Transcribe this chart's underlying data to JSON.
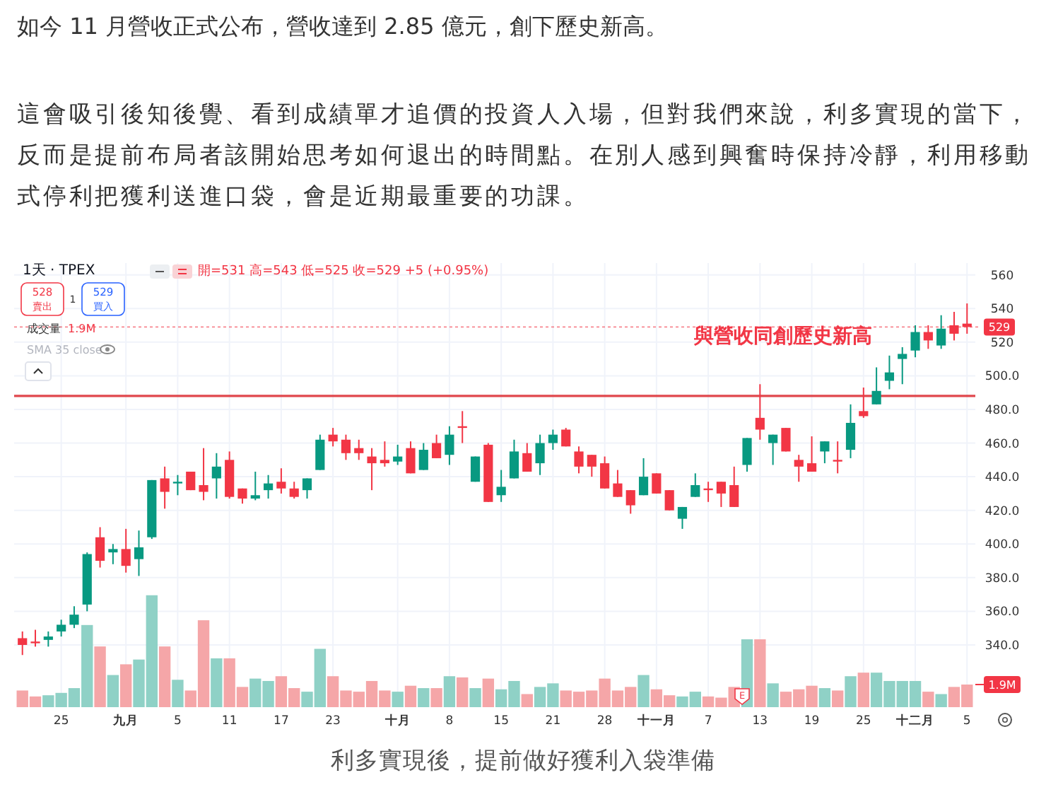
{
  "chart_data": {
    "type": "candlestick",
    "title": "如今 11 月營收正式公布，營收達到 2.85 億元，創下歷史新高。",
    "subtitle": "這會吸引後知後覺、看到成績單才追價的投資人入場，但對我們來說，利多實現的當下，反而是提前布局者該開始思考如何退出的時間點。在別人感到興奮時保持冷靜，利用移動式停利把獲利送進口袋，會是近期最重要的功課。",
    "categories": [
      null,
      null,
      null,
      "25",
      null,
      null,
      null,
      null,
      "九月",
      null,
      null,
      null,
      "5",
      null,
      null,
      null,
      "11",
      null,
      null,
      null,
      "17",
      null,
      null,
      null,
      "23",
      null,
      null,
      null,
      null,
      "十月",
      null,
      null,
      null,
      "8",
      null,
      null,
      null,
      "15",
      null,
      null,
      null,
      "21",
      null,
      null,
      null,
      "28",
      null,
      null,
      null,
      "十一月",
      null,
      null,
      null,
      "7",
      null,
      null,
      null,
      "13",
      null,
      null,
      null,
      "19",
      null,
      null,
      null,
      "25",
      null,
      null,
      null,
      "十二月",
      null,
      null,
      null,
      "5"
    ],
    "ohlc": [
      [
        344,
        348,
        334,
        340
      ],
      [
        342,
        349,
        339,
        341
      ],
      [
        343,
        348,
        339,
        345
      ],
      [
        348,
        355,
        345,
        352
      ],
      [
        352,
        363,
        350,
        358
      ],
      [
        364,
        395,
        360,
        394
      ],
      [
        404,
        410,
        386,
        390
      ],
      [
        395,
        400,
        388,
        397
      ],
      [
        397,
        409,
        383,
        387
      ],
      [
        391,
        408,
        381,
        398
      ],
      [
        404,
        438,
        403,
        438
      ],
      [
        439,
        446,
        421,
        431
      ],
      [
        436,
        441,
        429,
        437
      ],
      [
        443,
        443,
        432,
        432
      ],
      [
        435,
        457,
        426,
        431
      ],
      [
        439,
        454,
        427,
        446
      ],
      [
        450,
        455,
        427,
        428
      ],
      [
        433,
        433,
        424,
        427
      ],
      [
        427,
        443,
        426,
        429
      ],
      [
        432,
        441,
        427,
        436
      ],
      [
        437,
        445,
        430,
        433
      ],
      [
        433,
        437,
        427,
        428
      ],
      [
        432,
        439,
        427,
        439
      ],
      [
        444,
        465,
        444,
        462
      ],
      [
        465,
        469,
        458,
        461
      ],
      [
        462,
        465,
        450,
        454
      ],
      [
        457,
        462,
        450,
        454
      ],
      [
        452,
        457,
        432,
        448
      ],
      [
        450,
        461,
        446,
        448
      ],
      [
        449,
        459,
        447,
        452
      ],
      [
        457,
        461,
        442,
        442
      ],
      [
        444,
        460,
        444,
        456
      ],
      [
        460,
        465,
        451,
        451
      ],
      [
        453,
        470,
        447,
        465
      ],
      [
        470,
        479,
        460,
        469
      ],
      [
        437,
        452,
        437,
        452
      ],
      [
        459,
        460,
        425,
        425
      ],
      [
        429,
        444,
        425,
        434
      ],
      [
        439,
        462,
        439,
        455
      ],
      [
        454,
        460,
        443,
        443
      ],
      [
        448,
        465,
        441,
        460
      ],
      [
        460,
        468,
        456,
        465
      ],
      [
        468,
        469,
        458,
        458
      ],
      [
        455,
        458,
        442,
        446
      ],
      [
        453,
        453,
        440,
        446
      ],
      [
        448,
        452,
        433,
        433
      ],
      [
        436,
        444,
        428,
        428
      ],
      [
        432,
        432,
        418,
        423
      ],
      [
        429,
        451,
        429,
        440
      ],
      [
        442,
        442,
        430,
        430
      ],
      [
        432,
        432,
        420,
        420
      ],
      [
        415,
        422,
        409,
        422
      ],
      [
        428,
        442,
        428,
        435
      ],
      [
        433,
        437,
        425,
        432
      ],
      [
        437,
        437,
        422,
        430
      ],
      [
        435,
        446,
        422,
        422
      ],
      [
        447,
        463,
        443,
        463
      ],
      [
        475,
        495,
        462,
        468
      ],
      [
        460,
        465,
        447,
        465
      ],
      [
        469,
        469,
        455,
        455
      ],
      [
        450,
        453,
        437,
        446
      ],
      [
        448,
        464,
        443,
        443
      ],
      [
        455,
        461,
        448,
        461
      ],
      [
        450,
        461,
        442,
        449
      ],
      [
        456,
        483,
        451,
        472
      ],
      [
        479,
        493,
        475,
        476
      ],
      [
        483,
        505,
        483,
        491
      ],
      [
        497,
        512,
        492,
        502
      ],
      [
        510,
        517,
        495,
        513
      ],
      [
        515,
        530,
        511,
        526
      ],
      [
        526,
        530,
        516,
        521
      ],
      [
        518,
        536,
        516,
        528
      ],
      [
        530,
        538,
        521,
        525
      ],
      [
        531,
        543,
        525,
        529
      ]
    ],
    "colors": [
      "#f23645",
      "#f23645",
      "#089981",
      "#089981",
      "#089981",
      "#089981",
      "#f23645",
      "#089981",
      "#f23645",
      "#089981",
      "#089981",
      "#f23645",
      "#089981",
      "#f23645",
      "#f23645",
      "#089981",
      "#f23645",
      "#f23645",
      "#089981",
      "#089981",
      "#f23645",
      "#f23645",
      "#089981",
      "#089981",
      "#f23645",
      "#f23645",
      "#f23645",
      "#f23645",
      "#f23645",
      "#089981",
      "#f23645",
      "#089981",
      "#f23645",
      "#089981",
      "#f23645",
      "#089981",
      "#f23645",
      "#089981",
      "#089981",
      "#f23645",
      "#089981",
      "#089981",
      "#f23645",
      "#f23645",
      "#f23645",
      "#f23645",
      "#f23645",
      "#f23645",
      "#089981",
      "#f23645",
      "#f23645",
      "#089981",
      "#089981",
      "#f23645",
      "#f23645",
      "#f23645",
      "#089981",
      "#f23645",
      "#089981",
      "#f23645",
      "#f23645",
      "#f23645",
      "#089981",
      "#f23645",
      "#089981",
      "#f23645",
      "#089981",
      "#089981",
      "#089981",
      "#089981",
      "#f23645",
      "#089981",
      "#f23645",
      "#f23645"
    ],
    "series": [
      {
        "type": "bar",
        "axis": "y2",
        "values": [
          1.4,
          0.9,
          1.0,
          1.2,
          1.6,
          6.9,
          5.1,
          2.7,
          3.6,
          4.0,
          9.4,
          5.1,
          2.3,
          1.4,
          7.3,
          4.1,
          4.1,
          1.7,
          2.4,
          2.2,
          2.6,
          1.6,
          1.3,
          4.9,
          2.6,
          1.4,
          1.3,
          2.2,
          1.4,
          1.3,
          1.8,
          1.6,
          1.6,
          2.6,
          2.5,
          1.6,
          2.4,
          1.5,
          2.2,
          1.1,
          1.7,
          2.0,
          1.4,
          1.3,
          1.4,
          2.4,
          1.4,
          1.7,
          2.7,
          1.5,
          1.0,
          0.9,
          1.3,
          0.9,
          0.8,
          1.7,
          5.7,
          5.7,
          2.0,
          1.3,
          1.5,
          1.8,
          1.6,
          1.4,
          2.6,
          2.9,
          2.9,
          2.2,
          2.2,
          2.2,
          1.3,
          1.1,
          1.7,
          1.9
        ],
        "colors": [
          "#f5a6a8",
          "#f5a6a8",
          "#8fd1c6",
          "#8fd1c6",
          "#8fd1c6",
          "#8fd1c6",
          "#f5a6a8",
          "#8fd1c6",
          "#f5a6a8",
          "#8fd1c6",
          "#8fd1c6",
          "#f5a6a8",
          "#8fd1c6",
          "#f5a6a8",
          "#f5a6a8",
          "#8fd1c6",
          "#f5a6a8",
          "#f5a6a8",
          "#8fd1c6",
          "#8fd1c6",
          "#f5a6a8",
          "#f5a6a8",
          "#8fd1c6",
          "#8fd1c6",
          "#f5a6a8",
          "#f5a6a8",
          "#f5a6a8",
          "#f5a6a8",
          "#f5a6a8",
          "#8fd1c6",
          "#f5a6a8",
          "#8fd1c6",
          "#f5a6a8",
          "#8fd1c6",
          "#f5a6a8",
          "#8fd1c6",
          "#f5a6a8",
          "#8fd1c6",
          "#8fd1c6",
          "#f5a6a8",
          "#8fd1c6",
          "#8fd1c6",
          "#f5a6a8",
          "#f5a6a8",
          "#f5a6a8",
          "#f5a6a8",
          "#f5a6a8",
          "#f5a6a8",
          "#8fd1c6",
          "#f5a6a8",
          "#f5a6a8",
          "#8fd1c6",
          "#8fd1c6",
          "#f5a6a8",
          "#f5a6a8",
          "#f5a6a8",
          "#8fd1c6",
          "#f5a6a8",
          "#8fd1c6",
          "#f5a6a8",
          "#f5a6a8",
          "#f5a6a8",
          "#8fd1c6",
          "#f5a6a8",
          "#8fd1c6",
          "#f5a6a8",
          "#8fd1c6",
          "#8fd1c6",
          "#8fd1c6",
          "#8fd1c6",
          "#f5a6a8",
          "#8fd1c6",
          "#f5a6a8",
          "#f5a6a8"
        ]
      }
    ],
    "ylim": [
      303,
      567
    ],
    "yticks": [
      560,
      540,
      520,
      {
        "value": 500,
        "label": "500.0"
      },
      {
        "value": 480,
        "label": "480.0"
      },
      {
        "value": 460,
        "label": "460.0"
      },
      {
        "value": 440,
        "label": "440.0"
      },
      {
        "value": 420,
        "label": "420.0"
      },
      {
        "value": 400,
        "label": "400.0"
      },
      {
        "value": 380,
        "label": "380.0"
      },
      {
        "value": 360,
        "label": "360.0"
      },
      {
        "value": 340,
        "label": "340.0"
      }
    ],
    "y2lim": [
      0,
      37.3
    ],
    "y2ticks": [
      {
        "value": 1.9,
        "label": "1.9M"
      }
    ],
    "ref_lines": [
      {
        "axis": "y",
        "value": 529,
        "label": "529",
        "color": "#f23645",
        "line_style": "dotted"
      },
      {
        "axis": "y",
        "value": 488,
        "color": "#e0474c",
        "line_style": "solid"
      }
    ],
    "grid": true,
    "annotations": [
      "1天 · TPEX",
      "開=531 高=543 低=525 收=529 +5 (+0.95%)",
      "528",
      "賣出",
      "529",
      "買入",
      "1",
      "成交量",
      "1.9M",
      "SMA 35 close",
      "與營收同創歷史新高",
      "E",
      "利多實現後，提前做好獲利入袋準備"
    ]
  }
}
